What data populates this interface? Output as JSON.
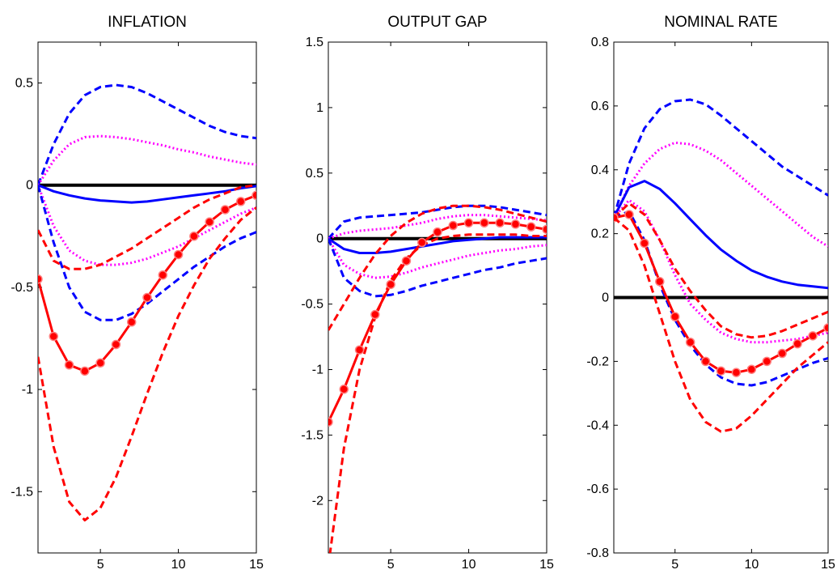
{
  "chart_data": [
    {
      "type": "line",
      "title": "INFLATION",
      "xlim": [
        1,
        15
      ],
      "ylim": [
        -1.8,
        0.7
      ],
      "xticks": [
        5,
        10,
        15
      ],
      "yticks": [
        -1.5,
        -1,
        -0.5,
        0,
        0.5
      ],
      "ytick_labels": [
        "-1.5",
        "-1",
        "-0.5",
        "0",
        "0.5"
      ],
      "x": [
        1,
        2,
        3,
        4,
        5,
        6,
        7,
        8,
        9,
        10,
        11,
        12,
        13,
        14,
        15
      ],
      "series": [
        {
          "style": "solid-black",
          "color": "#000000",
          "values": [
            0,
            0,
            0,
            0,
            0,
            0,
            0,
            0,
            0,
            0,
            0,
            0,
            0,
            0,
            0
          ]
        },
        {
          "style": "dashed",
          "color": "#0000ff",
          "values": [
            0,
            0.2,
            0.35,
            0.44,
            0.48,
            0.49,
            0.48,
            0.45,
            0.41,
            0.37,
            0.33,
            0.29,
            0.26,
            0.24,
            0.23
          ]
        },
        {
          "style": "dotted",
          "color": "#ff00ff",
          "values": [
            0,
            0.12,
            0.2,
            0.235,
            0.24,
            0.235,
            0.225,
            0.21,
            0.195,
            0.175,
            0.16,
            0.14,
            0.125,
            0.11,
            0.1
          ]
        },
        {
          "style": "solid",
          "color": "#0000ff",
          "values": [
            0,
            -0.03,
            -0.05,
            -0.065,
            -0.075,
            -0.08,
            -0.085,
            -0.08,
            -0.07,
            -0.06,
            -0.05,
            -0.04,
            -0.03,
            -0.015,
            -0.005
          ]
        },
        {
          "style": "dotted",
          "color": "#ff00ff",
          "values": [
            0,
            -0.2,
            -0.32,
            -0.37,
            -0.39,
            -0.39,
            -0.38,
            -0.36,
            -0.33,
            -0.3,
            -0.26,
            -0.22,
            -0.18,
            -0.14,
            -0.11
          ]
        },
        {
          "style": "dashed",
          "color": "#ff0000",
          "values": [
            -0.22,
            -0.37,
            -0.41,
            -0.41,
            -0.39,
            -0.35,
            -0.31,
            -0.26,
            -0.21,
            -0.16,
            -0.11,
            -0.07,
            -0.04,
            -0.01,
            0
          ]
        },
        {
          "style": "dashed",
          "color": "#0000ff",
          "values": [
            0,
            -0.28,
            -0.5,
            -0.62,
            -0.66,
            -0.66,
            -0.63,
            -0.58,
            -0.52,
            -0.46,
            -0.4,
            -0.35,
            -0.3,
            -0.26,
            -0.23
          ]
        },
        {
          "style": "solid-marker",
          "color": "#ff0000",
          "values": [
            -0.46,
            -0.74,
            -0.88,
            -0.91,
            -0.87,
            -0.78,
            -0.67,
            -0.55,
            -0.44,
            -0.34,
            -0.25,
            -0.18,
            -0.12,
            -0.08,
            -0.05
          ]
        },
        {
          "style": "dashed",
          "color": "#ff0000",
          "values": [
            -0.84,
            -1.28,
            -1.55,
            -1.64,
            -1.58,
            -1.43,
            -1.23,
            -1.02,
            -0.82,
            -0.64,
            -0.49,
            -0.36,
            -0.26,
            -0.17,
            -0.11
          ]
        }
      ]
    },
    {
      "type": "line",
      "title": "OUTPUT GAP",
      "xlim": [
        1,
        15
      ],
      "ylim": [
        -2.4,
        1.5
      ],
      "xticks": [
        5,
        10,
        15
      ],
      "yticks": [
        -2,
        -1.5,
        -1,
        -0.5,
        0,
        0.5,
        1,
        1.5
      ],
      "ytick_labels": [
        "-2",
        "-1.5",
        "-1",
        "-0.5",
        "0",
        "0.5",
        "1",
        "1.5"
      ],
      "x": [
        1,
        2,
        3,
        4,
        5,
        6,
        7,
        8,
        9,
        10,
        11,
        12,
        13,
        14,
        15
      ],
      "series": [
        {
          "style": "solid-black",
          "color": "#000000",
          "values": [
            0,
            0,
            0,
            0,
            0,
            0,
            0,
            0,
            0,
            0,
            0,
            0,
            0,
            0,
            0
          ]
        },
        {
          "style": "dashed",
          "color": "#0000ff",
          "values": [
            0,
            0.13,
            0.16,
            0.17,
            0.18,
            0.19,
            0.2,
            0.22,
            0.24,
            0.25,
            0.25,
            0.24,
            0.22,
            0.2,
            0.18
          ]
        },
        {
          "style": "dotted",
          "color": "#ff00ff",
          "values": [
            0,
            0.04,
            0.06,
            0.07,
            0.08,
            0.1,
            0.12,
            0.15,
            0.17,
            0.18,
            0.18,
            0.17,
            0.16,
            0.15,
            0.14
          ]
        },
        {
          "style": "solid",
          "color": "#0000ff",
          "values": [
            0,
            -0.08,
            -0.11,
            -0.11,
            -0.1,
            -0.08,
            -0.06,
            -0.04,
            -0.02,
            -0.01,
            0,
            0.01,
            0.01,
            0.01,
            0.01
          ]
        },
        {
          "style": "dotted",
          "color": "#ff00ff",
          "values": [
            0,
            -0.2,
            -0.27,
            -0.3,
            -0.29,
            -0.26,
            -0.22,
            -0.19,
            -0.16,
            -0.13,
            -0.11,
            -0.09,
            -0.08,
            -0.06,
            -0.05
          ]
        },
        {
          "style": "dashed",
          "color": "#0000ff",
          "values": [
            0,
            -0.3,
            -0.4,
            -0.44,
            -0.43,
            -0.4,
            -0.36,
            -0.33,
            -0.3,
            -0.27,
            -0.24,
            -0.22,
            -0.19,
            -0.17,
            -0.15
          ]
        },
        {
          "style": "dashed",
          "color": "#ff0000",
          "values": [
            -0.7,
            -0.5,
            -0.3,
            -0.12,
            0.02,
            0.12,
            0.19,
            0.23,
            0.25,
            0.25,
            0.24,
            0.22,
            0.19,
            0.16,
            0.13
          ]
        },
        {
          "style": "dashed",
          "color": "#ff0000",
          "values": [
            -2.5,
            -1.6,
            -1,
            -0.6,
            -0.32,
            -0.15,
            -0.05,
            0,
            0.02,
            0.03,
            0.03,
            0.03,
            0.03,
            0.02,
            0.02
          ]
        },
        {
          "style": "solid-marker",
          "color": "#ff0000",
          "values": [
            -1.4,
            -1.15,
            -0.85,
            -0.58,
            -0.35,
            -0.17,
            -0.03,
            0.05,
            0.1,
            0.12,
            0.12,
            0.12,
            0.11,
            0.09,
            0.07
          ]
        }
      ]
    },
    {
      "type": "line",
      "title": "NOMINAL RATE",
      "xlim": [
        1,
        15
      ],
      "ylim": [
        -0.8,
        0.8
      ],
      "xticks": [
        5,
        10,
        15
      ],
      "yticks": [
        -0.8,
        -0.6,
        -0.4,
        -0.2,
        0,
        0.2,
        0.4,
        0.6,
        0.8
      ],
      "ytick_labels": [
        "-0.8",
        "-0.6",
        "-0.4",
        "-0.2",
        "0",
        "0.2",
        "0.4",
        "0.6",
        "0.8"
      ],
      "x": [
        1,
        2,
        3,
        4,
        5,
        6,
        7,
        8,
        9,
        10,
        11,
        12,
        13,
        14,
        15
      ],
      "series": [
        {
          "style": "solid-black",
          "color": "#000000",
          "values": [
            0,
            0,
            0,
            0,
            0,
            0,
            0,
            0,
            0,
            0,
            0,
            0,
            0,
            0,
            0
          ]
        },
        {
          "style": "dashed",
          "color": "#0000ff",
          "values": [
            0.25,
            0.42,
            0.53,
            0.59,
            0.615,
            0.62,
            0.605,
            0.57,
            0.53,
            0.49,
            0.45,
            0.41,
            0.38,
            0.35,
            0.32
          ]
        },
        {
          "style": "dotted",
          "color": "#ff00ff",
          "values": [
            0.25,
            0.35,
            0.42,
            0.465,
            0.485,
            0.48,
            0.46,
            0.43,
            0.39,
            0.35,
            0.31,
            0.27,
            0.23,
            0.19,
            0.16
          ]
        },
        {
          "style": "solid",
          "color": "#0000ff",
          "values": [
            0.25,
            0.345,
            0.365,
            0.34,
            0.295,
            0.245,
            0.195,
            0.15,
            0.115,
            0.085,
            0.065,
            0.05,
            0.04,
            0.035,
            0.03
          ]
        },
        {
          "style": "dashed",
          "color": "#0000ff",
          "values": [
            0.25,
            0.27,
            0.18,
            0.04,
            -0.07,
            -0.15,
            -0.21,
            -0.25,
            -0.27,
            -0.275,
            -0.265,
            -0.245,
            -0.225,
            -0.205,
            -0.19
          ]
        },
        {
          "style": "dotted",
          "color": "#ff00ff",
          "values": [
            0.25,
            0.305,
            0.27,
            0.18,
            0.07,
            -0.02,
            -0.07,
            -0.11,
            -0.13,
            -0.14,
            -0.14,
            -0.135,
            -0.13,
            -0.12,
            -0.11
          ]
        },
        {
          "style": "dashed",
          "color": "#ff0000",
          "values": [
            0.25,
            0.295,
            0.26,
            0.18,
            0.09,
            0.02,
            -0.04,
            -0.09,
            -0.115,
            -0.125,
            -0.12,
            -0.105,
            -0.085,
            -0.065,
            -0.045
          ]
        },
        {
          "style": "solid-marker",
          "color": "#ff0000",
          "values": [
            0.25,
            0.26,
            0.17,
            0.05,
            -0.06,
            -0.14,
            -0.2,
            -0.23,
            -0.235,
            -0.225,
            -0.2,
            -0.175,
            -0.145,
            -0.12,
            -0.095
          ]
        },
        {
          "style": "dashed",
          "color": "#ff0000",
          "values": [
            0.25,
            0.21,
            0.1,
            -0.05,
            -0.2,
            -0.32,
            -0.39,
            -0.42,
            -0.41,
            -0.37,
            -0.32,
            -0.27,
            -0.22,
            -0.18,
            -0.14
          ]
        }
      ]
    }
  ]
}
